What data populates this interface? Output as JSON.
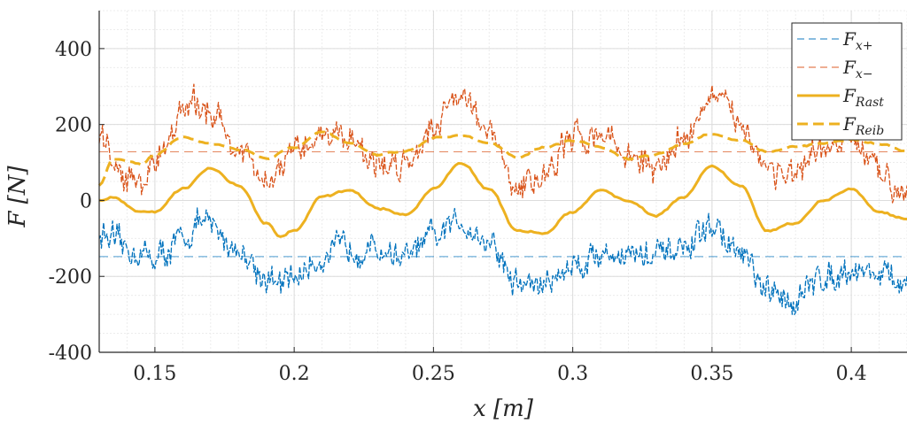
{
  "chart_data": {
    "type": "line",
    "xlabel": "x [m]",
    "ylabel": "F [N]",
    "xlim": [
      0.13,
      0.42
    ],
    "ylim": [
      -400,
      500
    ],
    "xticks": [
      0.15,
      0.2,
      0.25,
      0.3,
      0.35,
      0.4
    ],
    "xtick_labels": [
      "0.15",
      "0.2",
      "0.25",
      "0.3",
      "0.35",
      "0.4"
    ],
    "yticks": [
      -400,
      -200,
      0,
      200,
      400
    ],
    "ytick_labels": [
      "-400",
      "-200",
      "0",
      "200",
      "400"
    ],
    "grid": true,
    "minor_grid": true,
    "legend_position": "top-right",
    "colors": {
      "blue": "#0072BD",
      "orange": "#D95319",
      "yellow": "#EDB120",
      "blue_light": "#9EC5E8",
      "orange_light": "#F0A890"
    },
    "series": [
      {
        "name": "F_x+",
        "legend_main": "F",
        "legend_sub": "x+",
        "style": "dashed-thin",
        "color": "#0072BD",
        "x": [
          0.13,
          0.14,
          0.15,
          0.16,
          0.165,
          0.17,
          0.18,
          0.19,
          0.195,
          0.2,
          0.21,
          0.22,
          0.23,
          0.24,
          0.25,
          0.26,
          0.27,
          0.28,
          0.29,
          0.3,
          0.31,
          0.32,
          0.33,
          0.34,
          0.35,
          0.36,
          0.37,
          0.38,
          0.39,
          0.4,
          0.41,
          0.42
        ],
        "y": [
          -90,
          -130,
          -150,
          -110,
          -60,
          -70,
          -130,
          -200,
          -230,
          -200,
          -150,
          -120,
          -130,
          -150,
          -100,
          -55,
          -110,
          -220,
          -220,
          -170,
          -140,
          -140,
          -150,
          -130,
          -70,
          -140,
          -250,
          -260,
          -200,
          -180,
          -190,
          -230
        ],
        "mean": -148
      },
      {
        "name": "F_x-",
        "legend_main": "F",
        "legend_sub": "x−",
        "style": "dashed-thin",
        "color": "#D95319",
        "x": [
          0.13,
          0.14,
          0.145,
          0.15,
          0.16,
          0.165,
          0.17,
          0.18,
          0.19,
          0.2,
          0.21,
          0.22,
          0.23,
          0.24,
          0.25,
          0.26,
          0.27,
          0.28,
          0.29,
          0.3,
          0.31,
          0.32,
          0.33,
          0.34,
          0.35,
          0.36,
          0.37,
          0.38,
          0.39,
          0.4,
          0.41,
          0.42
        ],
        "y": [
          150,
          60,
          40,
          110,
          230,
          250,
          240,
          130,
          40,
          120,
          180,
          170,
          90,
          100,
          200,
          290,
          170,
          30,
          70,
          160,
          180,
          120,
          80,
          170,
          270,
          210,
          90,
          60,
          130,
          160,
          70,
          30
        ],
        "mean": 128
      },
      {
        "name": "F_Rast",
        "legend_main": "F",
        "legend_sub": "Rast",
        "style": "solid-thick",
        "color": "#EDB120",
        "x": [
          0.13,
          0.135,
          0.145,
          0.15,
          0.16,
          0.17,
          0.18,
          0.19,
          0.195,
          0.2,
          0.21,
          0.22,
          0.23,
          0.24,
          0.25,
          0.26,
          0.27,
          0.28,
          0.29,
          0.3,
          0.31,
          0.32,
          0.33,
          0.34,
          0.35,
          0.36,
          0.37,
          0.38,
          0.39,
          0.4,
          0.41,
          0.42
        ],
        "y": [
          0,
          10,
          -30,
          -30,
          30,
          85,
          40,
          -60,
          -95,
          -80,
          10,
          25,
          -20,
          -40,
          30,
          100,
          30,
          -80,
          -85,
          -30,
          25,
          0,
          -40,
          10,
          90,
          40,
          -80,
          -60,
          0,
          30,
          -30,
          -50
        ]
      },
      {
        "name": "F_Reib",
        "legend_main": "F",
        "legend_sub": "Reib",
        "style": "dashed-thick",
        "color": "#EDB120",
        "x": [
          0.13,
          0.135,
          0.145,
          0.15,
          0.16,
          0.17,
          0.18,
          0.19,
          0.2,
          0.21,
          0.22,
          0.23,
          0.24,
          0.25,
          0.26,
          0.27,
          0.28,
          0.29,
          0.3,
          0.31,
          0.32,
          0.33,
          0.34,
          0.35,
          0.36,
          0.37,
          0.38,
          0.39,
          0.4,
          0.41,
          0.42
        ],
        "y": [
          40,
          110,
          95,
          120,
          165,
          150,
          135,
          110,
          140,
          180,
          150,
          120,
          130,
          165,
          170,
          150,
          115,
          140,
          160,
          140,
          110,
          120,
          150,
          175,
          160,
          130,
          140,
          150,
          160,
          150,
          130
        ]
      }
    ]
  }
}
